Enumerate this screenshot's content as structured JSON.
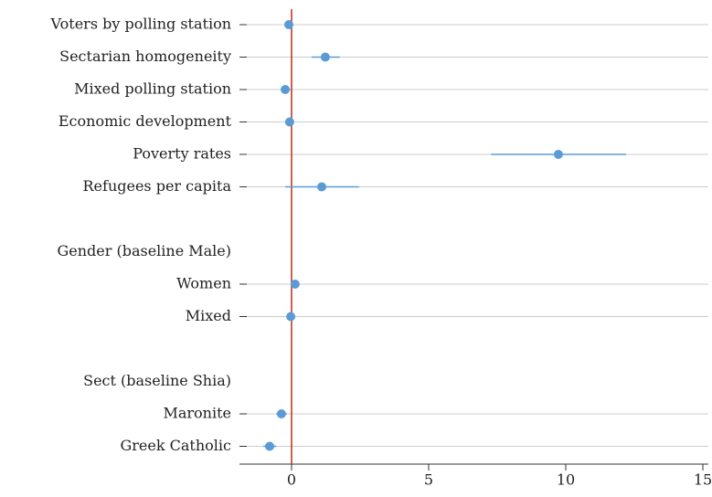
{
  "chart_data": {
    "type": "coefplot",
    "categories": [
      "Voters by polling station",
      "Sectarian homogeneity",
      "Mixed polling station",
      "Economic development",
      "Poverty rates",
      "Refugees per capita",
      null,
      "Gender (baseline Male)",
      "Women",
      "Mixed",
      null,
      "Sect (baseline Shia)",
      "Maronite",
      "Greek Catholic"
    ],
    "header_rows": [
      7,
      11
    ],
    "header_color": "#5b9bd5",
    "values": [
      -0.1,
      1.23,
      -0.23,
      -0.07,
      9.73,
      1.1,
      null,
      null,
      0.13,
      -0.03,
      null,
      null,
      -0.37,
      -0.8
    ],
    "ci_low": [
      -0.2,
      0.73,
      -0.4,
      -0.15,
      7.28,
      -0.23,
      null,
      null,
      0.05,
      -0.12,
      null,
      null,
      -0.56,
      -1.03
    ],
    "ci_high": [
      0.0,
      1.76,
      -0.05,
      0.01,
      12.2,
      2.46,
      null,
      null,
      0.21,
      0.06,
      null,
      null,
      -0.17,
      -0.56
    ],
    "color": "#5b9bd5",
    "reference_line": 0,
    "reference_color": "#c0392b",
    "xlim": [
      -1.9,
      15.2
    ],
    "xticks": [
      0,
      5,
      10,
      15
    ],
    "grid": true
  }
}
